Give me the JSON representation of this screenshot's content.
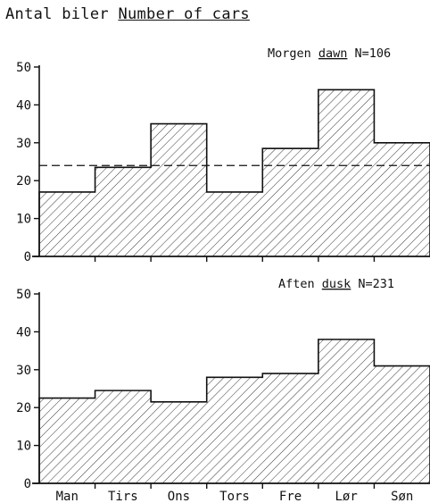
{
  "title": {
    "text_da": "Antal biler",
    "text_en": "Number of cars"
  },
  "chart_data": [
    {
      "type": "bar",
      "label_da": "Morgen",
      "label_en": "dawn",
      "label_n": "N=106",
      "categories": [
        "Man",
        "Tirs",
        "Ons",
        "Tors",
        "Fre",
        "Lør",
        "Søn"
      ],
      "values": [
        17,
        23.5,
        35,
        17,
        28.5,
        44,
        30
      ],
      "reference_line": 24,
      "ylim": [
        0,
        50
      ],
      "yticks": [
        0,
        10,
        20,
        30,
        40,
        50
      ],
      "style": "hatched-step",
      "grid": false
    },
    {
      "type": "bar",
      "label_da": "Aften",
      "label_en": "dusk",
      "label_n": "N=231",
      "categories": [
        "Man",
        "Tirs",
        "Ons",
        "Tors",
        "Fre",
        "Lør",
        "Søn"
      ],
      "values": [
        22.5,
        24.5,
        21.5,
        28,
        29,
        38,
        31
      ],
      "ylim": [
        0,
        50
      ],
      "yticks": [
        0,
        10,
        20,
        30,
        40,
        50
      ],
      "style": "hatched-step",
      "grid": false
    }
  ]
}
